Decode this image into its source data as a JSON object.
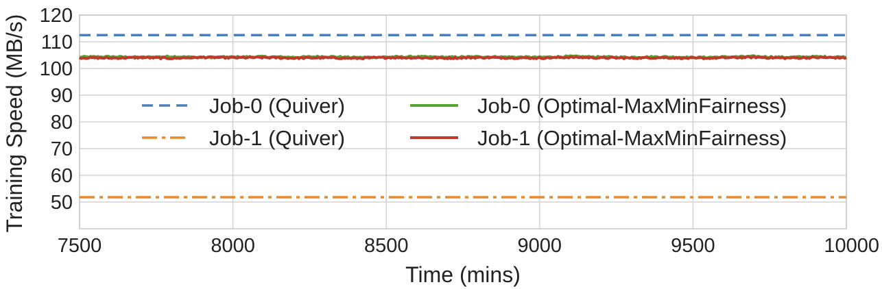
{
  "chart_data": {
    "type": "line",
    "title": "",
    "xlabel": "Time (mins)",
    "ylabel": "Training Speed (MB/s)",
    "xlim": [
      7500,
      10000
    ],
    "ylim": [
      40,
      120
    ],
    "xticks": [
      7500,
      8000,
      8500,
      9000,
      9500,
      10000
    ],
    "yticks": [
      50,
      60,
      70,
      80,
      90,
      100,
      110,
      120
    ],
    "grid": true,
    "legend_position": "center",
    "legend_columns": 2,
    "series": [
      {
        "name": "Job-0 (Quiver)",
        "style": "dashed",
        "color": "#4a7ebd",
        "x": [
          7500,
          10000
        ],
        "values": [
          112.5,
          112.5
        ]
      },
      {
        "name": "Job-1 (Quiver)",
        "style": "dashdot",
        "color": "#e8892b",
        "x": [
          7500,
          10000
        ],
        "values": [
          51.8,
          51.8
        ]
      },
      {
        "name": "Job-0 (Optimal-MaxMinFairness)",
        "style": "solid",
        "color": "#56a632",
        "x": [
          7500,
          7600,
          7700,
          7800,
          7900,
          8000,
          8100,
          8200,
          8300,
          8400,
          8500,
          8600,
          8700,
          8800,
          8900,
          9000,
          9100,
          9200,
          9300,
          9400,
          9500,
          9600,
          9700,
          9800,
          9900,
          10000
        ],
        "values": [
          104.3,
          104.4,
          104.2,
          104.5,
          104.1,
          104.3,
          104.4,
          104.2,
          104.5,
          104.1,
          104.3,
          104.4,
          104.2,
          104.4,
          104.3,
          104.2,
          104.5,
          104.3,
          104.2,
          104.4,
          104.1,
          104.3,
          104.5,
          104.2,
          104.4,
          104.3
        ]
      },
      {
        "name": "Job-1 (Optimal-MaxMinFairness)",
        "style": "solid",
        "color": "#c0392b",
        "x": [
          7500,
          7600,
          7700,
          7800,
          7900,
          8000,
          8100,
          8200,
          8300,
          8400,
          8500,
          8600,
          8700,
          8800,
          8900,
          9000,
          9100,
          9200,
          9300,
          9400,
          9500,
          9600,
          9700,
          9800,
          9900,
          10000
        ],
        "values": [
          104.0,
          103.9,
          104.1,
          103.8,
          104.2,
          104.0,
          104.1,
          103.9,
          104.0,
          103.8,
          104.1,
          104.0,
          103.9,
          104.1,
          104.0,
          103.9,
          104.2,
          104.0,
          103.9,
          104.1,
          103.8,
          104.0,
          104.2,
          103.9,
          104.1,
          104.0
        ]
      }
    ]
  }
}
